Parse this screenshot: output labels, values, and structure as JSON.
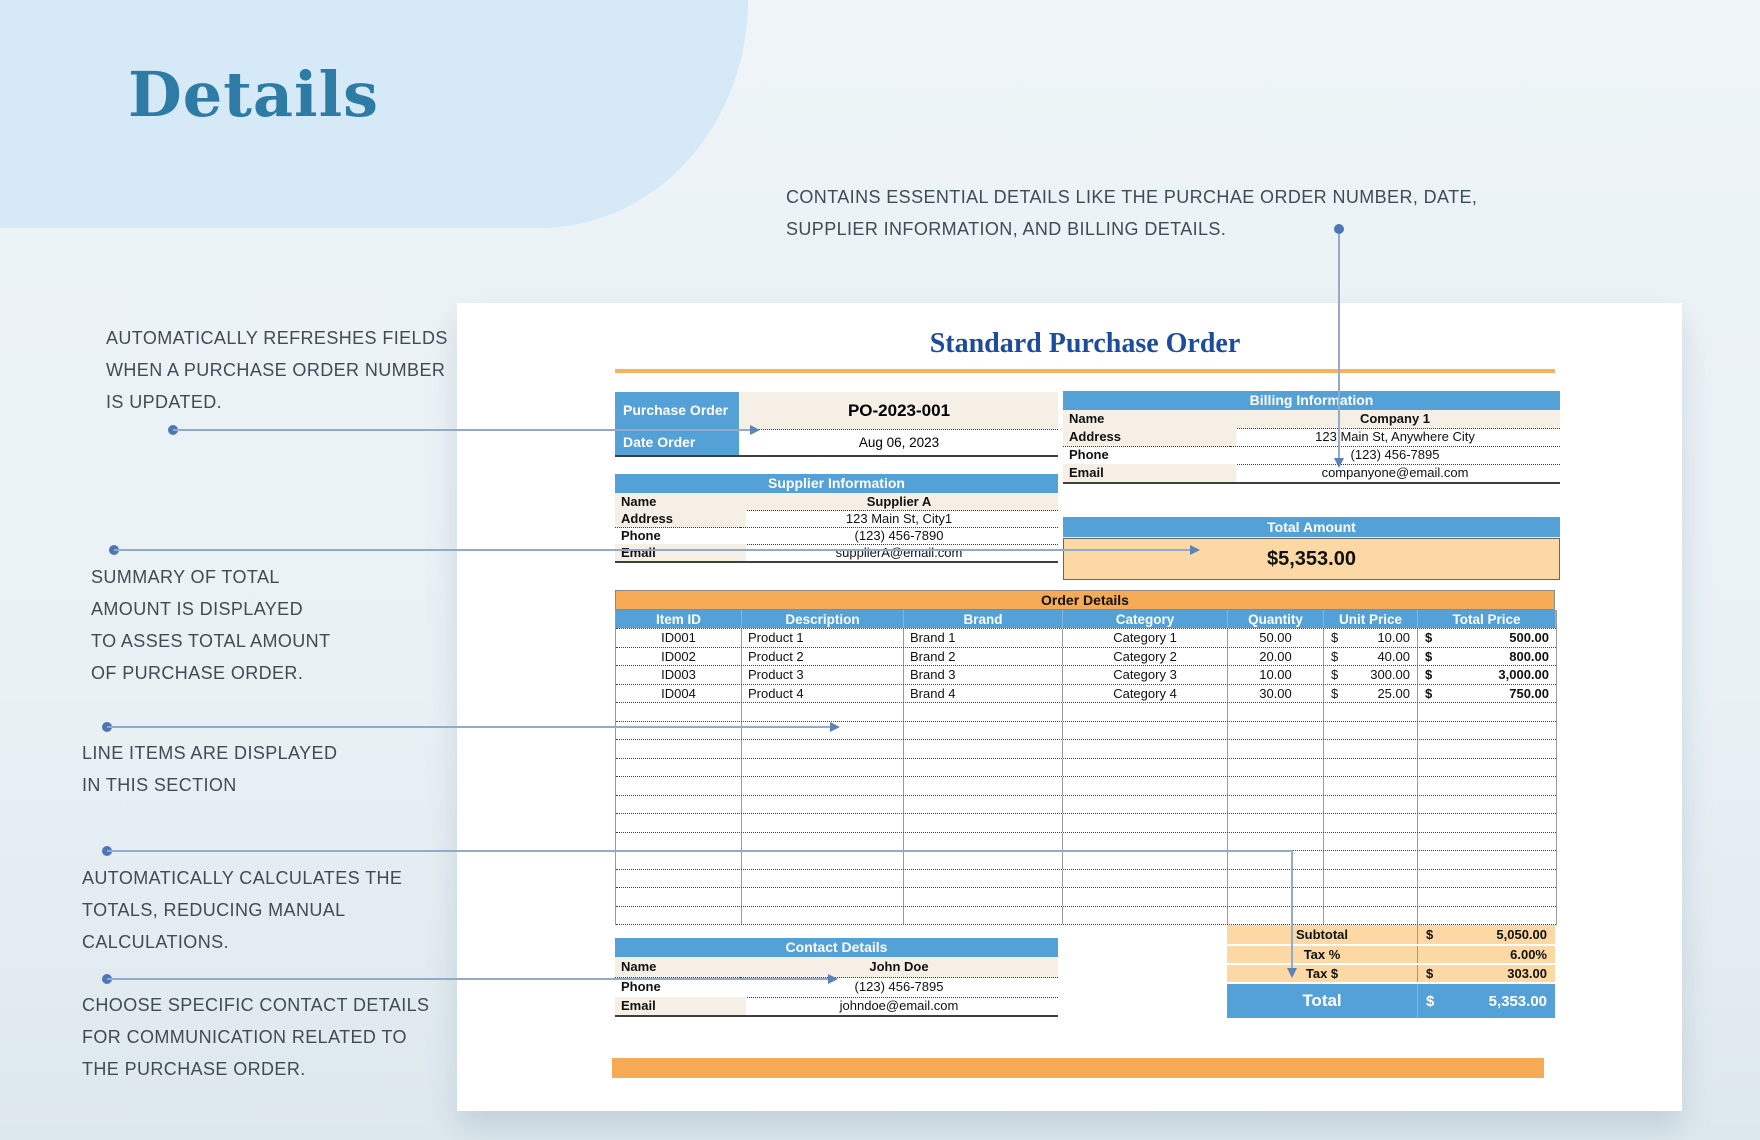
{
  "page": {
    "title": "Details"
  },
  "colors": {
    "accent_blue": "#54a1d8",
    "accent_orange": "#f7aa55",
    "peach": "#fcd8a4",
    "ivory": "#f6efe6",
    "title_navy": "#1d4c9c",
    "details_blue": "#2e7ba6",
    "connector_blue": "#4d76b3",
    "background": "#e9f1f5"
  },
  "annotations": {
    "intro": {
      "lines": [
        "CONTAINS ESSENTIAL DETAILS LIKE THE PURCHAE ORDER NUMBER, DATE,",
        "SUPPLIER INFORMATION, AND BILLING DETAILS."
      ]
    },
    "refresh": {
      "lines": [
        "AUTOMATICALLY REFRESHES FIELDS",
        "WHEN A PURCHASE ORDER NUMBER",
        "IS UPDATED."
      ]
    },
    "summary": {
      "lines": [
        "SUMMARY OF TOTAL",
        "AMOUNT IS DISPLAYED",
        "TO ASSES TOTAL AMOUNT",
        "OF PURCHASE ORDER."
      ]
    },
    "line_items": {
      "lines": [
        "LINE ITEMS ARE DISPLAYED",
        "IN THIS SECTION"
      ]
    },
    "calculates": {
      "lines": [
        "AUTOMATICALLY CALCULATES THE",
        "TOTALS, REDUCING MANUAL",
        "CALCULATIONS."
      ]
    },
    "contact": {
      "lines": [
        "CHOOSE SPECIFIC CONTACT DETAILS",
        "FOR COMMUNICATION RELATED TO",
        "THE PURCHASE ORDER."
      ]
    }
  },
  "sheet": {
    "title": "Standard Purchase Order",
    "po_block": {
      "rows": [
        {
          "label": "Purchase Order",
          "value": "PO-2023-001"
        },
        {
          "label": "Date Order",
          "value": "Aug 06, 2023"
        }
      ]
    },
    "supplier": {
      "header": "Supplier Information",
      "rows": [
        {
          "label": "Name",
          "value": "Supplier A"
        },
        {
          "label": "Address",
          "value": "123 Main St, City1"
        },
        {
          "label": "Phone",
          "value": "(123) 456-7890"
        },
        {
          "label": "Email",
          "value": "supplierA@email.com"
        }
      ]
    },
    "billing": {
      "header": "Billing Information",
      "rows": [
        {
          "label": "Name",
          "value": "Company 1"
        },
        {
          "label": "Address",
          "value": "123 Main St, Anywhere City"
        },
        {
          "label": "Phone",
          "value": "(123) 456-7895"
        },
        {
          "label": "Email",
          "value": "companyone@email.com"
        }
      ]
    },
    "total_amount": {
      "header": "Total Amount",
      "value": "$5,353.00"
    },
    "order_details": {
      "title": "Order Details",
      "columns": [
        "Item ID",
        "Description",
        "Brand",
        "Category",
        "Quantity",
        "Unit Price",
        "Total Price"
      ],
      "rows": [
        [
          "ID001",
          "Product 1",
          "Brand 1",
          "Category 1",
          "50.00",
          "10.00",
          "500.00"
        ],
        [
          "ID002",
          "Product 2",
          "Brand 2",
          "Category 2",
          "20.00",
          "40.00",
          "800.00"
        ],
        [
          "ID003",
          "Product 3",
          "Brand 3",
          "Category 3",
          "10.00",
          "300.00",
          "3,000.00"
        ],
        [
          "ID004",
          "Product 4",
          "Brand 4",
          "Category 4",
          "30.00",
          "25.00",
          "750.00"
        ]
      ],
      "currency_symbol": "$",
      "empty_row_count": 12
    },
    "totals": {
      "rows": [
        {
          "label": "Subtotal",
          "currency": "$",
          "value": "5,050.00"
        },
        {
          "label": "Tax %",
          "currency": "",
          "value": "6.00%"
        },
        {
          "label": "Tax $",
          "currency": "$",
          "value": "303.00"
        },
        {
          "label": "Total",
          "currency": "$",
          "value": "5,353.00"
        }
      ]
    },
    "contact": {
      "header": "Contact Details",
      "rows": [
        {
          "label": "Name",
          "value": "John Doe"
        },
        {
          "label": "Phone",
          "value": "(123) 456-7895"
        },
        {
          "label": "Email",
          "value": "johndoe@email.com"
        }
      ]
    }
  }
}
